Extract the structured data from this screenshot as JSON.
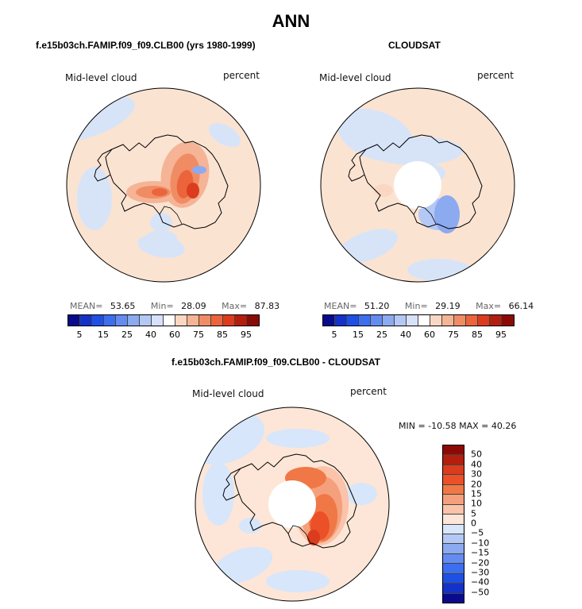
{
  "figure": {
    "title": "ANN"
  },
  "panels": [
    {
      "title": "f.e15b03ch.FAMIP.f09_f09.CLB00 (yrs 1980-1999)",
      "variable_label": "Mid-level cloud",
      "units_label": "percent",
      "stats": {
        "mean_label": "MEAN=",
        "mean": "53.65",
        "min_label": "Min=",
        "min": "28.09",
        "max_label": "Max=",
        "max": "87.83"
      }
    },
    {
      "title": "CLOUDSAT",
      "variable_label": "Mid-level cloud",
      "units_label": "percent",
      "stats": {
        "mean_label": "MEAN=",
        "mean": "51.20",
        "min_label": "Min=",
        "min": "29.19",
        "max_label": "Max=",
        "max": "66.14"
      }
    },
    {
      "title": "f.e15b03ch.FAMIP.f09_f09.CLB00 - CLOUDSAT",
      "variable_label": "Mid-level cloud",
      "units_label": "percent",
      "stats_line": "MIN = -10.58 MAX =  40.26"
    }
  ],
  "chart_data": [
    {
      "type": "heatmap",
      "projection": "south-polar-stereographic",
      "title": "f.e15b03ch.FAMIP.f09_f09.CLB00 (yrs 1980-1999)",
      "variable": "Mid-level cloud",
      "units": "percent",
      "mean": 53.65,
      "min": 28.09,
      "max": 87.83,
      "colorbar": {
        "orientation": "horizontal",
        "tick_labels": [
          "5",
          "15",
          "25",
          "40",
          "60",
          "75",
          "85",
          "95"
        ],
        "colors": [
          "#0a0a8c",
          "#1432c8",
          "#1e50e6",
          "#3c6ef0",
          "#648cf0",
          "#8caaf0",
          "#b4c8f5",
          "#d7e1fa",
          "#ffffff",
          "#fad7c3",
          "#f5b496",
          "#f08c64",
          "#eb643c",
          "#dc3c1e",
          "#b41e0f",
          "#8c0a05"
        ]
      }
    },
    {
      "type": "heatmap",
      "projection": "south-polar-stereographic",
      "title": "CLOUDSAT",
      "variable": "Mid-level cloud",
      "units": "percent",
      "mean": 51.2,
      "min": 29.19,
      "max": 66.14,
      "colorbar": {
        "orientation": "horizontal",
        "tick_labels": [
          "5",
          "15",
          "25",
          "40",
          "60",
          "75",
          "85",
          "95"
        ],
        "colors": [
          "#0a0a8c",
          "#1432c8",
          "#1e50e6",
          "#3c6ef0",
          "#648cf0",
          "#8caaf0",
          "#b4c8f5",
          "#d7e1fa",
          "#ffffff",
          "#fad7c3",
          "#f5b496",
          "#f08c64",
          "#eb643c",
          "#dc3c1e",
          "#b41e0f",
          "#8c0a05"
        ]
      }
    },
    {
      "type": "heatmap",
      "projection": "south-polar-stereographic",
      "title": "f.e15b03ch.FAMIP.f09_f09.CLB00 - CLOUDSAT",
      "variable": "Mid-level cloud",
      "units": "percent",
      "min": -10.58,
      "max": 40.26,
      "colorbar": {
        "orientation": "vertical",
        "tick_labels": [
          "50",
          "40",
          "30",
          "20",
          "15",
          "10",
          "5",
          "0",
          "−5",
          "−10",
          "−15",
          "−20",
          "−30",
          "−40",
          "−50"
        ],
        "colors": [
          "#8c0a05",
          "#b41e0f",
          "#dc3c1e",
          "#eb5028",
          "#f07846",
          "#f5a07d",
          "#fac3aa",
          "#fde6d7",
          "#d7e6fa",
          "#b4c8f5",
          "#8caaf0",
          "#648cf0",
          "#3c6ef0",
          "#1e50e6",
          "#1432c8",
          "#0a0a8c"
        ]
      }
    }
  ]
}
